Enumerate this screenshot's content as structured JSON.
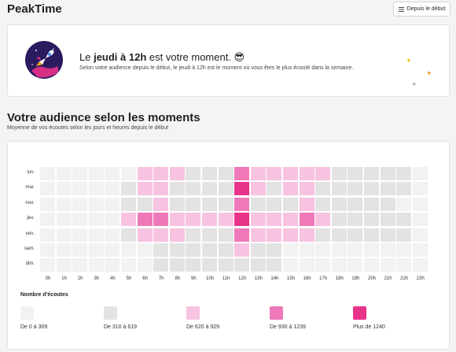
{
  "app": {
    "title": "PeakTime"
  },
  "period_button": {
    "label": "Depuis le début"
  },
  "hero": {
    "title_before": "Le ",
    "title_em": "jeudi à 12h",
    "title_after": " est votre moment. 😎",
    "subtitle": "Selon votre audience depuis le début, le jeudi à 12h est le moment où vous êtes le plus écouté dans la semaine."
  },
  "section": {
    "title": "Votre audience selon les moments",
    "subtitle": "Moyenne de vos écoutes selon les jours et heures depuis le début"
  },
  "colors": [
    "#f2f2f2",
    "#e3e3e3",
    "#f7c3e0",
    "#ef79b8",
    "#e8338a"
  ],
  "chart_data": {
    "type": "heatmap",
    "rows": [
      "lun.",
      "mar.",
      "mer.",
      "jeu.",
      "ven.",
      "sam.",
      "dim."
    ],
    "columns": [
      "0h",
      "1h",
      "2h",
      "3h",
      "4h",
      "5h",
      "6h",
      "7h",
      "8h",
      "9h",
      "10h",
      "11h",
      "12h",
      "13h",
      "14h",
      "15h",
      "16h",
      "17h",
      "18h",
      "19h",
      "20h",
      "21h",
      "22h",
      "23h"
    ],
    "levels": [
      [
        0,
        0,
        0,
        0,
        0,
        0,
        2,
        2,
        2,
        1,
        1,
        1,
        3,
        2,
        2,
        2,
        2,
        2,
        1,
        1,
        1,
        1,
        1,
        0
      ],
      [
        0,
        0,
        0,
        0,
        0,
        1,
        2,
        2,
        1,
        1,
        1,
        1,
        4,
        2,
        1,
        2,
        2,
        1,
        1,
        1,
        1,
        1,
        1,
        0
      ],
      [
        0,
        0,
        0,
        0,
        0,
        1,
        1,
        2,
        1,
        1,
        1,
        1,
        3,
        1,
        1,
        1,
        2,
        1,
        1,
        1,
        1,
        1,
        0,
        0
      ],
      [
        0,
        0,
        0,
        0,
        0,
        2,
        3,
        3,
        2,
        2,
        2,
        2,
        4,
        2,
        2,
        2,
        3,
        2,
        1,
        1,
        1,
        1,
        1,
        0
      ],
      [
        0,
        0,
        0,
        0,
        0,
        1,
        2,
        2,
        2,
        1,
        1,
        1,
        3,
        2,
        2,
        2,
        2,
        1,
        1,
        1,
        1,
        1,
        1,
        0
      ],
      [
        0,
        0,
        0,
        0,
        0,
        0,
        0,
        1,
        1,
        1,
        1,
        1,
        2,
        1,
        1,
        0,
        0,
        0,
        0,
        0,
        0,
        0,
        0,
        0
      ],
      [
        0,
        0,
        0,
        0,
        0,
        0,
        0,
        1,
        1,
        1,
        1,
        1,
        1,
        1,
        1,
        0,
        0,
        0,
        0,
        0,
        0,
        0,
        0,
        0
      ]
    ],
    "legend_title": "Nombre d'écoutes",
    "legend": [
      {
        "label": "De 0 à 309",
        "level": 0
      },
      {
        "label": "De 310 à 619",
        "level": 1
      },
      {
        "label": "De 620 à 929",
        "level": 2
      },
      {
        "label": "De 930 à 1239",
        "level": 3
      },
      {
        "label": "Plus de 1240",
        "level": 4
      }
    ]
  }
}
